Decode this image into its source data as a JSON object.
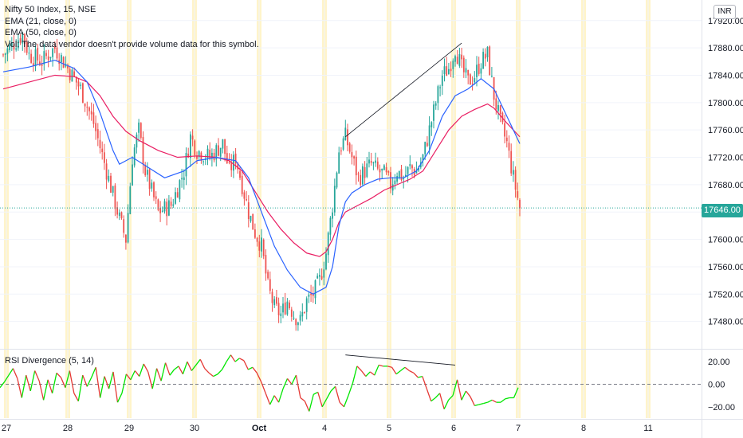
{
  "header": {
    "symbol_line": "Nifty 50 Index, 15, NSE",
    "ema21_line": "EMA (21, close, 0)",
    "ema50_line": "EMA (50, close, 0)",
    "vol_line": "Vol: The data vendor doesn't provide volume data for this symbol."
  },
  "currency_badge": "INR",
  "last_price_label": "17646.00",
  "rsi_pane_label": "RSI Divergence (5, 14)",
  "colors": {
    "up": "#26a69a",
    "down": "#ef5350",
    "ema21": "#2962ff",
    "ema50": "#e91e63",
    "rsi_up": "#00e600",
    "rsi_down": "#e53935",
    "session_band": "#fff3c4",
    "grid": "#f0f3fa"
  },
  "chart_data": [
    {
      "type": "candlestick",
      "title": "Nifty 50 Index, 15, NSE",
      "ylim": [
        17440,
        17950
      ],
      "y_ticks": [
        17480,
        17520,
        17560,
        17600,
        17640,
        17680,
        17720,
        17760,
        17800,
        17840,
        17880,
        17920
      ],
      "y_tick_labels": [
        "17480.00",
        "17520.00",
        "17560.00",
        "17600.00",
        "17640.00",
        "17680.00",
        "17720.00",
        "17760.00",
        "17800.00",
        "17840.00",
        "17880.00",
        "17920.00"
      ],
      "x_tick_labels": [
        "27",
        "28",
        "29",
        "30",
        "Oct",
        "4",
        "5",
        "6",
        "7",
        "8",
        "11"
      ],
      "last_price": 17646,
      "close_path": [
        [
          0,
          17870
        ],
        [
          2,
          17890
        ],
        [
          3,
          17900
        ],
        [
          4,
          17870
        ],
        [
          6,
          17860
        ],
        [
          8,
          17880
        ],
        [
          10,
          17850
        ],
        [
          12,
          17820
        ],
        [
          14,
          17770
        ],
        [
          16,
          17700
        ],
        [
          18,
          17630
        ],
        [
          19,
          17600
        ],
        [
          20,
          17720
        ],
        [
          21,
          17760
        ],
        [
          22,
          17700
        ],
        [
          24,
          17640
        ],
        [
          26,
          17650
        ],
        [
          28,
          17700
        ],
        [
          29,
          17750
        ],
        [
          30,
          17730
        ],
        [
          32,
          17720
        ],
        [
          34,
          17740
        ],
        [
          35,
          17700
        ],
        [
          36,
          17720
        ],
        [
          37,
          17680
        ],
        [
          38,
          17640
        ],
        [
          39,
          17610
        ],
        [
          40,
          17590
        ],
        [
          41,
          17530
        ],
        [
          42,
          17500
        ],
        [
          43,
          17490
        ],
        [
          44,
          17510
        ],
        [
          45,
          17490
        ],
        [
          46,
          17480
        ],
        [
          47,
          17510
        ],
        [
          48,
          17520
        ],
        [
          49,
          17540
        ],
        [
          50,
          17580
        ],
        [
          51,
          17650
        ],
        [
          52,
          17730
        ],
        [
          53,
          17750
        ],
        [
          54,
          17720
        ],
        [
          55,
          17690
        ],
        [
          56,
          17700
        ],
        [
          57,
          17710
        ],
        [
          58,
          17700
        ],
        [
          59,
          17695
        ],
        [
          60,
          17680
        ],
        [
          61,
          17700
        ],
        [
          62,
          17690
        ],
        [
          63,
          17705
        ],
        [
          64,
          17700
        ],
        [
          65,
          17720
        ],
        [
          66,
          17760
        ],
        [
          67,
          17800
        ],
        [
          68,
          17840
        ],
        [
          69,
          17850
        ],
        [
          70,
          17880
        ],
        [
          71,
          17850
        ],
        [
          72,
          17830
        ],
        [
          73,
          17840
        ],
        [
          74,
          17860
        ],
        [
          75,
          17870
        ],
        [
          76,
          17810
        ],
        [
          77,
          17770
        ],
        [
          78,
          17740
        ],
        [
          79,
          17690
        ],
        [
          80,
          17646
        ]
      ],
      "ema21": [
        [
          0,
          17845
        ],
        [
          4,
          17852
        ],
        [
          8,
          17862
        ],
        [
          11,
          17850
        ],
        [
          13,
          17830
        ],
        [
          15,
          17785
        ],
        [
          17,
          17730
        ],
        [
          18,
          17710
        ],
        [
          20,
          17720
        ],
        [
          22,
          17708
        ],
        [
          25,
          17690
        ],
        [
          28,
          17700
        ],
        [
          30,
          17715
        ],
        [
          33,
          17720
        ],
        [
          36,
          17715
        ],
        [
          38,
          17690
        ],
        [
          40,
          17640
        ],
        [
          42,
          17590
        ],
        [
          44,
          17555
        ],
        [
          46,
          17530
        ],
        [
          48,
          17520
        ],
        [
          50,
          17530
        ],
        [
          51,
          17560
        ],
        [
          52,
          17620
        ],
        [
          53,
          17655
        ],
        [
          54,
          17668
        ],
        [
          56,
          17680
        ],
        [
          58,
          17688
        ],
        [
          60,
          17690
        ],
        [
          62,
          17690
        ],
        [
          64,
          17700
        ],
        [
          66,
          17730
        ],
        [
          68,
          17780
        ],
        [
          70,
          17810
        ],
        [
          72,
          17820
        ],
        [
          74,
          17835
        ],
        [
          76,
          17820
        ],
        [
          77,
          17800
        ],
        [
          78,
          17780
        ],
        [
          79,
          17760
        ],
        [
          80,
          17740
        ]
      ],
      "ema50": [
        [
          0,
          17820
        ],
        [
          4,
          17830
        ],
        [
          8,
          17840
        ],
        [
          11,
          17838
        ],
        [
          13,
          17830
        ],
        [
          15,
          17810
        ],
        [
          17,
          17780
        ],
        [
          19,
          17758
        ],
        [
          21,
          17745
        ],
        [
          24,
          17730
        ],
        [
          27,
          17720
        ],
        [
          30,
          17722
        ],
        [
          33,
          17720
        ],
        [
          35,
          17715
        ],
        [
          37,
          17700
        ],
        [
          39,
          17670
        ],
        [
          41,
          17640
        ],
        [
          43,
          17615
        ],
        [
          45,
          17595
        ],
        [
          47,
          17580
        ],
        [
          49,
          17575
        ],
        [
          50,
          17582
        ],
        [
          51,
          17600
        ],
        [
          52,
          17625
        ],
        [
          53,
          17640
        ],
        [
          55,
          17650
        ],
        [
          57,
          17660
        ],
        [
          59,
          17672
        ],
        [
          61,
          17680
        ],
        [
          63,
          17688
        ],
        [
          65,
          17700
        ],
        [
          67,
          17730
        ],
        [
          69,
          17760
        ],
        [
          71,
          17780
        ],
        [
          73,
          17790
        ],
        [
          75,
          17798
        ],
        [
          76,
          17792
        ],
        [
          78,
          17770
        ],
        [
          80,
          17750
        ]
      ],
      "trendline": [
        [
          53,
          17750
        ],
        [
          71,
          17887
        ]
      ]
    },
    {
      "type": "line",
      "title": "RSI Divergence (5, 14)",
      "ylim": [
        -30,
        30
      ],
      "y_ticks": [
        20,
        0,
        -20
      ],
      "y_tick_labels": [
        "20.00",
        "0.00",
        "−20.00"
      ],
      "zero_line": 0,
      "values": [
        -3,
        2,
        8,
        14,
        5,
        -12,
        8,
        -6,
        12,
        3,
        -14,
        4,
        -8,
        10,
        6,
        -3,
        12,
        -8,
        -15,
        8,
        -2,
        6,
        15,
        -12,
        7,
        -4,
        11,
        -16,
        -8,
        9,
        4,
        12,
        7,
        18,
        11,
        -4,
        14,
        3,
        19,
        8,
        13,
        16,
        9,
        20,
        12,
        17,
        22,
        14,
        10,
        7,
        9,
        13,
        20,
        26,
        20,
        23,
        21,
        13,
        15,
        10,
        2,
        -8,
        -18,
        -10,
        -16,
        -4,
        5,
        0,
        8,
        -12,
        -15,
        -24,
        -9,
        -7,
        -20,
        -13,
        -6,
        -2,
        -16,
        -20,
        -10,
        1,
        16,
        12,
        7,
        11,
        8,
        17,
        16,
        16,
        15,
        9,
        12,
        15,
        12,
        10,
        6,
        7,
        -4,
        -15,
        -12,
        -8,
        -22,
        -14,
        -10,
        4,
        -14,
        -6,
        -11,
        -19,
        -18,
        -17,
        -16,
        -14,
        -16,
        -16,
        -13,
        -12,
        -12,
        -3
      ],
      "divergence_line": [
        [
          53,
          26
        ],
        [
          70,
          17
        ]
      ]
    }
  ]
}
